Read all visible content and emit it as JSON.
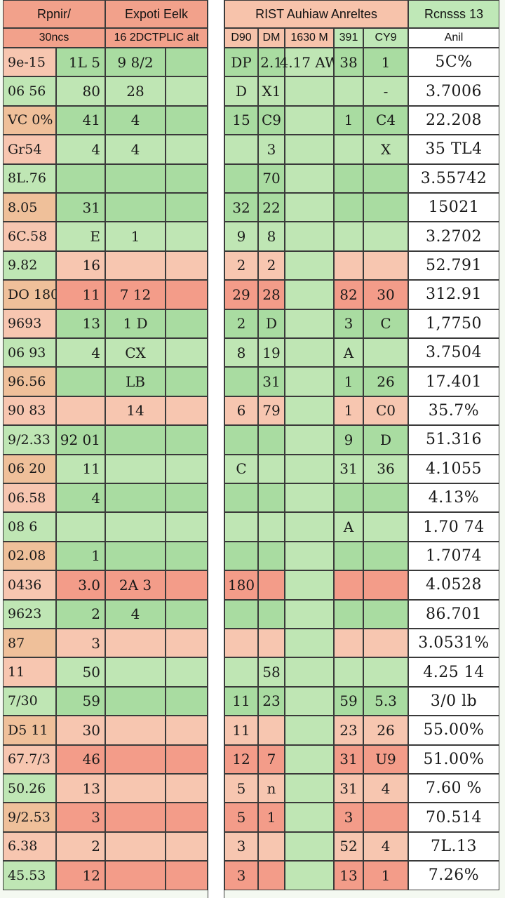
{
  "header": {
    "col1_title": "Rpnir/",
    "col1_sub": "30ncs",
    "col2_title": "Expoti Eelk",
    "col2_sub": "16 2DCTPLIC alt",
    "col3_title": "RIST Auhiaw Anreltes",
    "col3_sub": [
      "D90",
      "DM",
      "1630 M",
      "391",
      "CY9"
    ],
    "col4_title": "Rcnsss 13",
    "col4_sub": "Anil"
  },
  "rows": [
    {
      "id": "9e-15",
      "a": "1L 5",
      "b": "9 8/2",
      "c": "DP",
      "d": "2.1",
      "e": "4.17 AW",
      "f": "38",
      "g": "1",
      "total": "5C%"
    },
    {
      "id": "06 56",
      "a": "80",
      "b": "28",
      "c": "D",
      "d": "X1",
      "e": "",
      "f": "",
      "g": "-",
      "total": "3.7006"
    },
    {
      "id": "VC 0%",
      "a": "41",
      "b": "4",
      "c": "15",
      "d": "C9",
      "e": "",
      "f": "1",
      "g": "C4",
      "total": "22.208"
    },
    {
      "id": "Gr54",
      "a": "4",
      "b": "4",
      "c": "",
      "d": "3",
      "e": "",
      "f": "",
      "g": "X",
      "total": "35 TL4"
    },
    {
      "id": "8L.76",
      "a": "",
      "b": "",
      "c": "",
      "d": "70",
      "e": "",
      "f": "",
      "g": "",
      "total": "3.55742"
    },
    {
      "id": "8.05",
      "a": "31",
      "b": "",
      "c": "32",
      "d": "22",
      "e": "",
      "f": "",
      "g": "",
      "total": "15021"
    },
    {
      "id": "6C.58",
      "a": "E",
      "b": "1",
      "c": "9",
      "d": "8",
      "e": "",
      "f": "",
      "g": "",
      "total": "3.2702"
    },
    {
      "id": "9.82",
      "a": "16",
      "b": "",
      "c": "2",
      "d": "2",
      "e": "",
      "f": "",
      "g": "",
      "total": "52.791"
    },
    {
      "id": "DO 180",
      "a": "11",
      "b": "7 12",
      "c": "29",
      "d": "28",
      "e": "",
      "f": "82",
      "g": "30",
      "total": "312.91"
    },
    {
      "id": "9693",
      "a": "13",
      "b": "1 D",
      "c": "2",
      "d": "D",
      "e": "",
      "f": "3",
      "g": "C",
      "total": "1,7750"
    },
    {
      "id": "06 93",
      "a": "4",
      "b": "CX",
      "c": "8",
      "d": "19",
      "e": "",
      "f": "A",
      "g": "",
      "total": "3.7504"
    },
    {
      "id": "96.56",
      "a": "",
      "b": "LB",
      "c": "",
      "d": "31",
      "e": "",
      "f": "1",
      "g": "26",
      "total": "17.401"
    },
    {
      "id": "90 83",
      "a": "",
      "b": "14",
      "c": "6",
      "d": "79",
      "e": "",
      "f": "1",
      "g": "C0",
      "total": "35.7%"
    },
    {
      "id": "9/2.33",
      "a": "92 01",
      "b": "",
      "c": "",
      "d": "",
      "e": "",
      "f": "9",
      "g": "D",
      "total": "51.316"
    },
    {
      "id": "06 20",
      "a": "11",
      "b": "",
      "c": "C",
      "d": "",
      "e": "",
      "f": "31",
      "g": "36",
      "total": "4.1055"
    },
    {
      "id": "06.58",
      "a": "4",
      "b": "",
      "c": "",
      "d": "",
      "e": "",
      "f": "",
      "g": "",
      "total": "4.13%"
    },
    {
      "id": "08 6",
      "a": "",
      "b": "",
      "c": "",
      "d": "",
      "e": "",
      "f": "A",
      "g": "",
      "total": "1.70 74"
    },
    {
      "id": "02.08",
      "a": "1",
      "b": "",
      "c": "",
      "d": "",
      "e": "",
      "f": "",
      "g": "",
      "total": "1.7074"
    },
    {
      "id": "0436",
      "a": "3.0",
      "b": "2A 3",
      "c": "180",
      "d": "",
      "e": "",
      "f": "",
      "g": "",
      "total": "4.0528"
    },
    {
      "id": "9623",
      "a": "2",
      "b": "4",
      "c": "",
      "d": "",
      "e": "",
      "f": "",
      "g": "",
      "total": "86.701"
    },
    {
      "id": "87",
      "a": "3",
      "b": "",
      "c": "",
      "d": "",
      "e": "",
      "f": "",
      "g": "",
      "total": "3.0531%"
    },
    {
      "id": "11",
      "a": "50",
      "b": "",
      "c": "",
      "d": "58",
      "e": "",
      "f": "",
      "g": "",
      "total": "4.25 14"
    },
    {
      "id": "7/30",
      "a": "59",
      "b": "",
      "c": "11",
      "d": "23",
      "e": "",
      "f": "59",
      "g": "5.3",
      "total": "3/0 lb"
    },
    {
      "id": "D5 11",
      "a": "30",
      "b": "",
      "c": "11",
      "d": "",
      "e": "",
      "f": "23",
      "g": "26",
      "total": "55.00%"
    },
    {
      "id": "67.7/3",
      "a": "46",
      "b": "",
      "c": "12",
      "d": "7",
      "e": "",
      "f": "31",
      "g": "U9",
      "total": "51.00%"
    },
    {
      "id": "50.26",
      "a": "13",
      "b": "",
      "c": "5",
      "d": "n",
      "e": "",
      "f": "31",
      "g": "4",
      "total": "7.60 %"
    },
    {
      "id": "9/2.53",
      "a": "3",
      "b": "",
      "c": "5",
      "d": "1",
      "e": "",
      "f": "3",
      "g": "",
      "total": "70.514"
    },
    {
      "id": "6.38",
      "a": "2",
      "b": "",
      "c": "3",
      "d": "",
      "e": "",
      "f": "52",
      "g": "4",
      "total": "7L.13"
    },
    {
      "id": "45.53",
      "a": "12",
      "b": "",
      "c": "3",
      "d": "",
      "e": "",
      "f": "13",
      "g": "1",
      "total": "7.26%"
    }
  ],
  "colors": {
    "green": "#a9dca1",
    "red": "#f39c89",
    "pink": "#f7c6b0",
    "header_red": "#f2a18b"
  }
}
